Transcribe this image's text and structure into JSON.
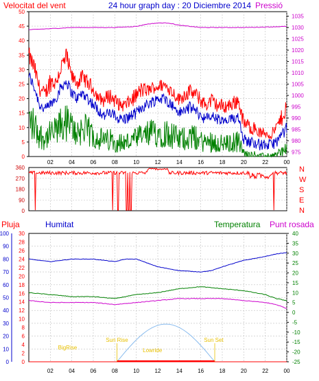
{
  "header": {
    "title": "24 hour graph day : 20 Diciembre 2014",
    "left_label": "Velocitat del vent",
    "right_label": "Pressió"
  },
  "colors": {
    "frame": "#000000",
    "grid": "#bfbfbf",
    "red": "#ff0000",
    "blue": "#0000cc",
    "green": "#008000",
    "magenta": "#cc00cc",
    "darkred": "#cc0000",
    "sun_arc": "#88bbee",
    "sun_text": "#e8c000"
  },
  "chart_data": [
    {
      "type": "line",
      "name": "wind",
      "x_ticks": [
        "02",
        "04",
        "06",
        "08",
        "10",
        "12",
        "14",
        "16",
        "18",
        "20",
        "22",
        "00"
      ],
      "y_left_ticks": [
        0,
        5,
        10,
        15,
        20,
        25,
        30,
        35,
        40,
        45,
        50
      ],
      "y_right_ticks": [
        975,
        980,
        985,
        990,
        995,
        1000,
        1005,
        1010,
        1015,
        1020,
        1025,
        1030,
        1035
      ],
      "ylim_left": [
        0,
        50
      ],
      "ylim_right": [
        973,
        1037
      ],
      "gust_max_profile": [
        [
          0.0,
          38
        ],
        [
          0.5,
          34
        ],
        [
          1.0,
          26
        ],
        [
          1.5,
          24
        ],
        [
          2.0,
          30
        ],
        [
          2.5,
          28
        ],
        [
          3.0,
          34
        ],
        [
          3.5,
          38
        ],
        [
          4.0,
          30
        ],
        [
          4.5,
          28
        ],
        [
          5.0,
          30
        ],
        [
          5.5,
          28
        ],
        [
          6.0,
          26
        ],
        [
          6.5,
          22
        ],
        [
          7.0,
          22
        ],
        [
          7.5,
          24
        ],
        [
          8.0,
          22
        ],
        [
          8.5,
          20
        ],
        [
          9.0,
          20
        ],
        [
          9.5,
          22
        ],
        [
          10.0,
          24
        ],
        [
          10.5,
          26
        ],
        [
          11.0,
          25
        ],
        [
          11.5,
          26
        ],
        [
          12.0,
          26
        ],
        [
          12.5,
          27
        ],
        [
          13.0,
          26
        ],
        [
          13.5,
          24
        ],
        [
          14.0,
          22
        ],
        [
          14.5,
          24
        ],
        [
          15.0,
          25
        ],
        [
          15.5,
          24
        ],
        [
          16.0,
          22
        ],
        [
          16.5,
          20
        ],
        [
          17.0,
          22
        ],
        [
          17.5,
          20
        ],
        [
          18.0,
          20
        ],
        [
          18.5,
          20
        ],
        [
          19.0,
          21
        ],
        [
          19.5,
          22
        ],
        [
          20.0,
          14
        ],
        [
          20.5,
          13
        ],
        [
          21.0,
          12
        ],
        [
          21.5,
          10
        ],
        [
          22.0,
          10
        ],
        [
          22.5,
          9
        ],
        [
          23.0,
          12
        ],
        [
          23.5,
          16
        ],
        [
          24.0,
          21
        ]
      ],
      "avg_profile": [
        [
          0.0,
          28
        ],
        [
          0.5,
          24
        ],
        [
          1.0,
          18
        ],
        [
          1.5,
          16
        ],
        [
          2.0,
          18
        ],
        [
          2.5,
          20
        ],
        [
          3.0,
          24
        ],
        [
          3.5,
          26
        ],
        [
          4.0,
          22
        ],
        [
          4.5,
          20
        ],
        [
          5.0,
          22
        ],
        [
          5.5,
          20
        ],
        [
          6.0,
          18
        ],
        [
          6.5,
          16
        ],
        [
          7.0,
          14
        ],
        [
          7.5,
          15
        ],
        [
          8.0,
          14
        ],
        [
          8.5,
          13
        ],
        [
          9.0,
          13
        ],
        [
          9.5,
          14
        ],
        [
          10.0,
          15
        ],
        [
          10.5,
          17
        ],
        [
          11.0,
          18
        ],
        [
          11.5,
          19
        ],
        [
          12.0,
          20
        ],
        [
          12.5,
          20
        ],
        [
          13.0,
          19
        ],
        [
          13.5,
          17
        ],
        [
          14.0,
          15
        ],
        [
          14.5,
          16
        ],
        [
          15.0,
          17
        ],
        [
          15.5,
          16
        ],
        [
          16.0,
          14
        ],
        [
          16.5,
          13
        ],
        [
          17.0,
          14
        ],
        [
          17.5,
          13
        ],
        [
          18.0,
          12
        ],
        [
          18.5,
          12
        ],
        [
          19.0,
          13
        ],
        [
          19.5,
          14
        ],
        [
          20.0,
          6
        ],
        [
          20.5,
          5
        ],
        [
          21.0,
          5
        ],
        [
          21.5,
          4
        ],
        [
          22.0,
          4
        ],
        [
          22.5,
          4
        ],
        [
          23.0,
          5
        ],
        [
          23.5,
          7
        ],
        [
          24.0,
          10
        ]
      ],
      "pressure_profile": [
        [
          0.0,
          1029.0
        ],
        [
          2.0,
          1029.5
        ],
        [
          4.0,
          1030.0
        ],
        [
          6.0,
          1030.0
        ],
        [
          8.0,
          1030.0
        ],
        [
          10.0,
          1030.5
        ],
        [
          11.0,
          1031.5
        ],
        [
          12.0,
          1032.0
        ],
        [
          13.0,
          1032.0
        ],
        [
          14.0,
          1031.0
        ],
        [
          16.0,
          1030.0
        ],
        [
          18.0,
          1030.0
        ],
        [
          20.0,
          1030.0
        ],
        [
          22.0,
          1030.2
        ],
        [
          24.0,
          1030.5
        ]
      ]
    },
    {
      "type": "line",
      "name": "direction",
      "y_ticks": [
        0,
        90,
        180,
        270,
        360
      ],
      "compass_labels": [
        "N",
        "W",
        "S",
        "E",
        "N"
      ],
      "ylim": [
        0,
        360
      ],
      "baseline": 315,
      "dropouts": [
        [
          0.6,
          5
        ],
        [
          7.8,
          5
        ],
        [
          8.3,
          5
        ],
        [
          9.1,
          5
        ],
        [
          9.3,
          5
        ],
        [
          9.5,
          5
        ],
        [
          22.8,
          5
        ]
      ]
    },
    {
      "type": "line",
      "name": "climate",
      "labels": {
        "pluja": "Pluja",
        "humitat": "Humitat",
        "temperatura": "Temperatura",
        "punt_rosada": "Punt rosada"
      },
      "y_humidity_ticks": [
        0,
        10,
        20,
        30,
        40,
        50,
        60,
        70,
        80,
        90,
        100
      ],
      "y_rain_ticks": [
        0,
        2,
        4,
        6,
        8,
        10,
        12,
        14,
        16,
        18,
        20,
        22,
        24,
        26,
        28,
        30
      ],
      "y_temp_ticks": [
        -25,
        -20,
        -15,
        -10,
        -5,
        0,
        5,
        10,
        15,
        20,
        25,
        30,
        35,
        40
      ],
      "humidity_profile": [
        [
          0,
          80
        ],
        [
          2,
          78
        ],
        [
          4,
          80
        ],
        [
          6,
          80
        ],
        [
          8,
          78
        ],
        [
          9,
          80
        ],
        [
          10,
          80
        ],
        [
          12,
          74
        ],
        [
          14,
          71
        ],
        [
          16,
          70
        ],
        [
          17,
          71
        ],
        [
          18,
          74
        ],
        [
          20,
          79
        ],
        [
          22,
          82
        ],
        [
          23,
          84
        ],
        [
          24,
          85
        ]
      ],
      "temperature_profile": [
        [
          0,
          10
        ],
        [
          2,
          9
        ],
        [
          4,
          8
        ],
        [
          6,
          8
        ],
        [
          8,
          7
        ],
        [
          10,
          9
        ],
        [
          12,
          10
        ],
        [
          14,
          12
        ],
        [
          16,
          13
        ],
        [
          18,
          12
        ],
        [
          20,
          11
        ],
        [
          22,
          9
        ],
        [
          23,
          7
        ],
        [
          24,
          6
        ]
      ],
      "dewpoint_profile": [
        [
          0,
          6
        ],
        [
          2,
          5
        ],
        [
          4,
          5
        ],
        [
          6,
          5
        ],
        [
          8,
          4
        ],
        [
          10,
          5
        ],
        [
          12,
          6
        ],
        [
          14,
          7
        ],
        [
          16,
          7
        ],
        [
          18,
          7
        ],
        [
          20,
          6
        ],
        [
          22,
          5
        ],
        [
          23,
          4
        ],
        [
          24,
          2
        ]
      ],
      "sun": {
        "sunrise": "Sun Rise",
        "sunset": "Sun Set",
        "bigrise": "BigRise",
        "lowride": "Lowride",
        "arc_peak": 8.8
      }
    }
  ]
}
